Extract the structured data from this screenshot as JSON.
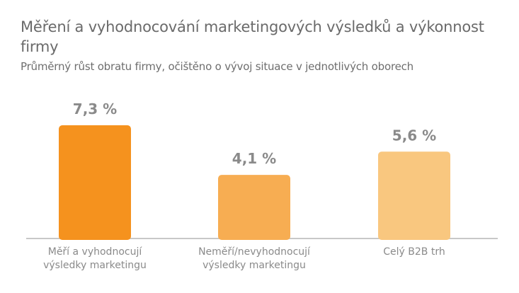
{
  "title": "Měření a vyhodnocování marketingových výsledků a výkonnost firmy",
  "subtitle": "Průměrný růst obratu firmy, očištěno o vývoj situace v jednotlivých oborech",
  "colors": {
    "text": "#6a6a6a",
    "axis": "#b5b5b5",
    "bars": [
      "#f5921e",
      "#f7ad52",
      "#f9c77f"
    ]
  },
  "chart_data": {
    "type": "bar",
    "categories": [
      [
        "Měří a vyhodnocují",
        "výsledky marketingu"
      ],
      [
        "Neměří/nevyhodnocují",
        "výsledky marketingu"
      ],
      [
        "Celý B2B trh"
      ]
    ],
    "values": [
      7.3,
      4.1,
      5.6
    ],
    "value_labels": [
      "7,3 %",
      "4,1 %",
      "5,6 %"
    ],
    "unit": "%",
    "ylim": [
      0,
      8.5
    ],
    "grid": false,
    "legend": "none",
    "xlabel": "",
    "ylabel": ""
  }
}
